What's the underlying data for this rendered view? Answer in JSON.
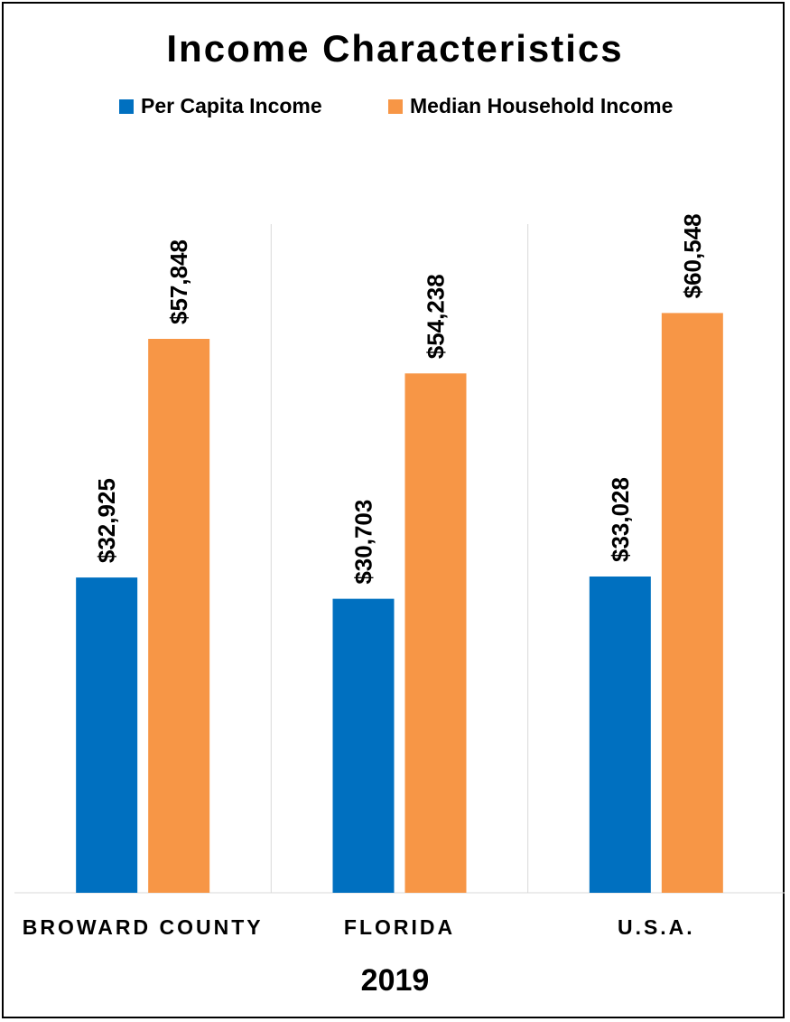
{
  "chart_data": {
    "type": "bar",
    "title": "Income Characteristics",
    "xlabel": "2019",
    "ylabel": "",
    "categories": [
      "BROWARD COUNTY",
      "FLORIDA",
      "U.S.A."
    ],
    "series": [
      {
        "name": "Per Capita Income",
        "color": "#0070C0",
        "values": [
          32925,
          30703,
          33028
        ],
        "labels": [
          "$32,925",
          "$30,703",
          "$33,028"
        ]
      },
      {
        "name": "Median Household Income",
        "color": "#F79646",
        "values": [
          57848,
          54238,
          60548
        ],
        "labels": [
          "$57,848",
          "$54,238",
          "$60,548"
        ]
      }
    ],
    "ylim": [
      0,
      70000
    ],
    "grid": false,
    "legend": "top-center"
  }
}
